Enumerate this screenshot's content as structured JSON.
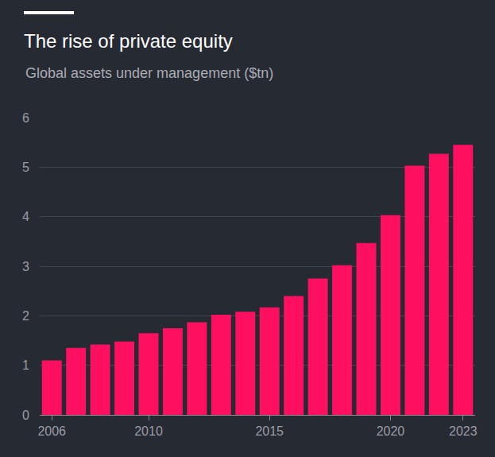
{
  "chart_data": {
    "type": "bar",
    "title": "The rise of private equity",
    "subtitle": "Global assets under management ($tn)",
    "x": [
      2006,
      2007,
      2008,
      2009,
      2010,
      2011,
      2012,
      2013,
      2014,
      2015,
      2016,
      2017,
      2018,
      2019,
      2020,
      2021,
      2022,
      2023
    ],
    "values": [
      1.1,
      1.35,
      1.42,
      1.48,
      1.65,
      1.75,
      1.87,
      2.02,
      2.08,
      2.17,
      2.4,
      2.75,
      3.02,
      3.47,
      4.03,
      5.03,
      5.27,
      5.45
    ],
    "color": "#ff0f5f",
    "xlim": [
      2005.5,
      2023.5
    ],
    "xticks": [
      2006,
      2010,
      2015,
      2020,
      2023
    ],
    "ylim": [
      0,
      6
    ],
    "yticks": [
      0,
      1,
      2,
      3,
      4,
      5,
      6
    ],
    "grid": true
  }
}
